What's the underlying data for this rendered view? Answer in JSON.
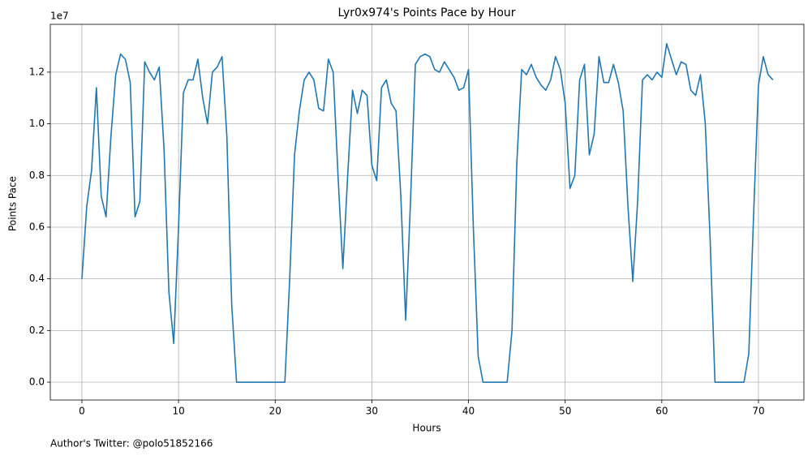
{
  "chart_data": {
    "type": "line",
    "title": "Lyr0x974's Points Pace by Hour",
    "xlabel": "Hours",
    "ylabel": "Points Pace",
    "y_offset_label": "1e7",
    "footer": "Author's Twitter: @polo51852166",
    "color": "#1f77b4",
    "grid": true,
    "xlim": [
      -3.27,
      74.7
    ],
    "ylim": [
      -0.069,
      1.385
    ],
    "xticks": [
      0,
      10,
      20,
      30,
      40,
      50,
      60,
      70
    ],
    "yticks": [
      {
        "value": 0,
        "label": "0.0"
      },
      0.2,
      0.4,
      0.6,
      0.8,
      {
        "value": 1,
        "label": "1.0"
      },
      1.2
    ],
    "x": [
      0,
      0.5,
      1,
      1.5,
      2,
      2.5,
      3,
      3.5,
      4,
      4.5,
      5,
      5.5,
      6,
      6.5,
      7,
      7.5,
      8,
      8.5,
      9,
      9.5,
      10,
      10.5,
      11,
      11.5,
      12,
      12.5,
      13,
      13.5,
      14,
      14.5,
      15,
      15.5,
      16,
      16.5,
      17,
      17.5,
      18,
      18.5,
      19,
      19.5,
      20,
      20.5,
      21,
      21.5,
      22,
      22.5,
      23,
      23.5,
      24,
      24.5,
      25,
      25.5,
      26,
      26.5,
      27,
      27.5,
      28,
      28.5,
      29,
      29.5,
      30,
      30.5,
      31,
      31.5,
      32,
      32.5,
      33,
      33.5,
      34,
      34.5,
      35,
      35.5,
      36,
      36.5,
      37,
      37.5,
      38,
      38.5,
      39,
      39.5,
      40,
      40.5,
      41,
      41.5,
      42,
      42.5,
      43,
      43.5,
      44,
      44.5,
      45,
      45.5,
      46,
      46.5,
      47,
      47.5,
      48,
      48.5,
      49,
      49.5,
      50,
      50.5,
      51,
      51.5,
      52,
      52.5,
      53,
      53.5,
      54,
      54.5,
      55,
      55.5,
      56,
      56.5,
      57,
      57.5,
      58,
      58.5,
      59,
      59.5,
      60,
      60.5,
      61,
      61.5,
      62,
      62.5,
      63,
      63.5,
      64,
      64.5,
      65,
      65.5,
      66,
      66.5,
      67,
      67.5,
      68,
      68.5,
      69,
      69.5,
      70,
      70.5,
      71,
      71.5
    ],
    "values": [
      0.4,
      0.68,
      0.82,
      1.14,
      0.72,
      0.64,
      0.95,
      1.19,
      1.27,
      1.25,
      1.16,
      0.64,
      0.7,
      1.24,
      1.2,
      1.17,
      1.22,
      0.9,
      0.35,
      0.15,
      0.6,
      1.12,
      1.17,
      1.17,
      1.25,
      1.1,
      1.0,
      1.2,
      1.22,
      1.26,
      0.95,
      0.3,
      0,
      0,
      0,
      0,
      0,
      0,
      0,
      0,
      0,
      0,
      0,
      0.4,
      0.88,
      1.05,
      1.17,
      1.2,
      1.17,
      1.06,
      1.05,
      1.25,
      1.2,
      0.8,
      0.44,
      0.8,
      1.13,
      1.04,
      1.13,
      1.11,
      0.84,
      0.78,
      1.14,
      1.17,
      1.08,
      1.05,
      0.72,
      0.24,
      0.7,
      1.23,
      1.26,
      1.27,
      1.26,
      1.21,
      1.2,
      1.24,
      1.21,
      1.18,
      1.13,
      1.14,
      1.21,
      0.6,
      0.1,
      0,
      0,
      0,
      0,
      0,
      0,
      0.2,
      0.85,
      1.21,
      1.19,
      1.23,
      1.18,
      1.15,
      1.13,
      1.17,
      1.26,
      1.21,
      1.08,
      0.75,
      0.8,
      1.17,
      1.23,
      0.88,
      0.96,
      1.26,
      1.16,
      1.16,
      1.23,
      1.16,
      1.05,
      0.68,
      0.39,
      0.7,
      1.17,
      1.19,
      1.17,
      1.2,
      1.18,
      1.31,
      1.25,
      1.19,
      1.24,
      1.23,
      1.13,
      1.11,
      1.19,
      1.0,
      0.55,
      0,
      0,
      0,
      0,
      0,
      0,
      0,
      0.11,
      0.65,
      1.15,
      1.26,
      1.19,
      1.17
    ]
  }
}
